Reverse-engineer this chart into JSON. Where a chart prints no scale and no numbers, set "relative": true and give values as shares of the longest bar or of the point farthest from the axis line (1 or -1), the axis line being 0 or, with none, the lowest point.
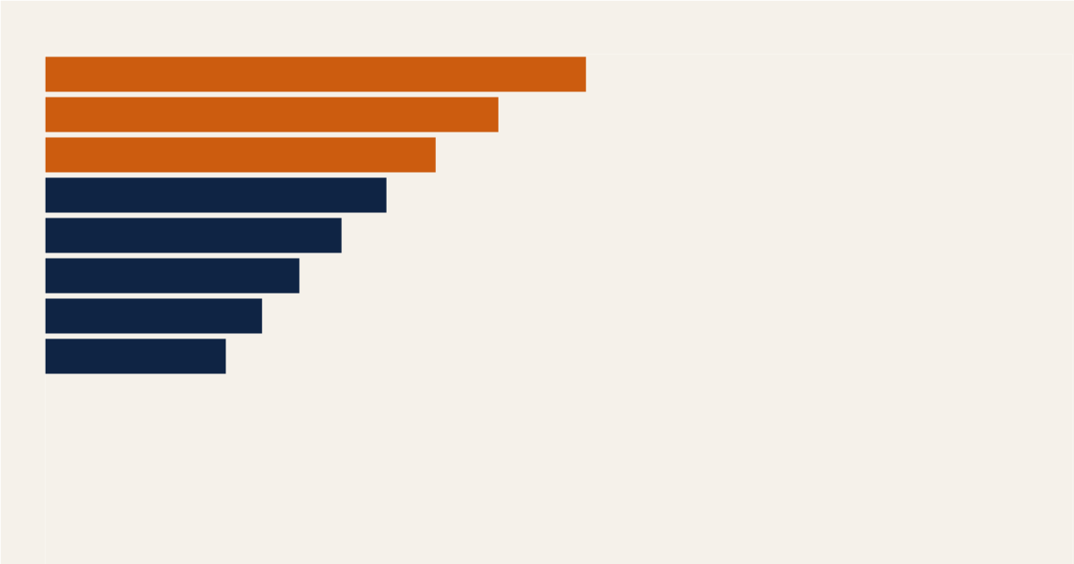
{
  "chart_data": {
    "type": "bar",
    "orientation": "horizontal",
    "relative": true,
    "categories": [
      null,
      null,
      null,
      null,
      null,
      null,
      null,
      null
    ],
    "values": [
      1,
      0.838,
      0.722,
      0.631,
      0.548,
      0.47,
      0.401,
      0.334
    ],
    "colors": [
      "#cc5c0f",
      "#cc5c0f",
      "#cc5c0f",
      "#0f2444",
      "#0f2444",
      "#0f2444",
      "#0f2444",
      "#0f2444"
    ]
  }
}
